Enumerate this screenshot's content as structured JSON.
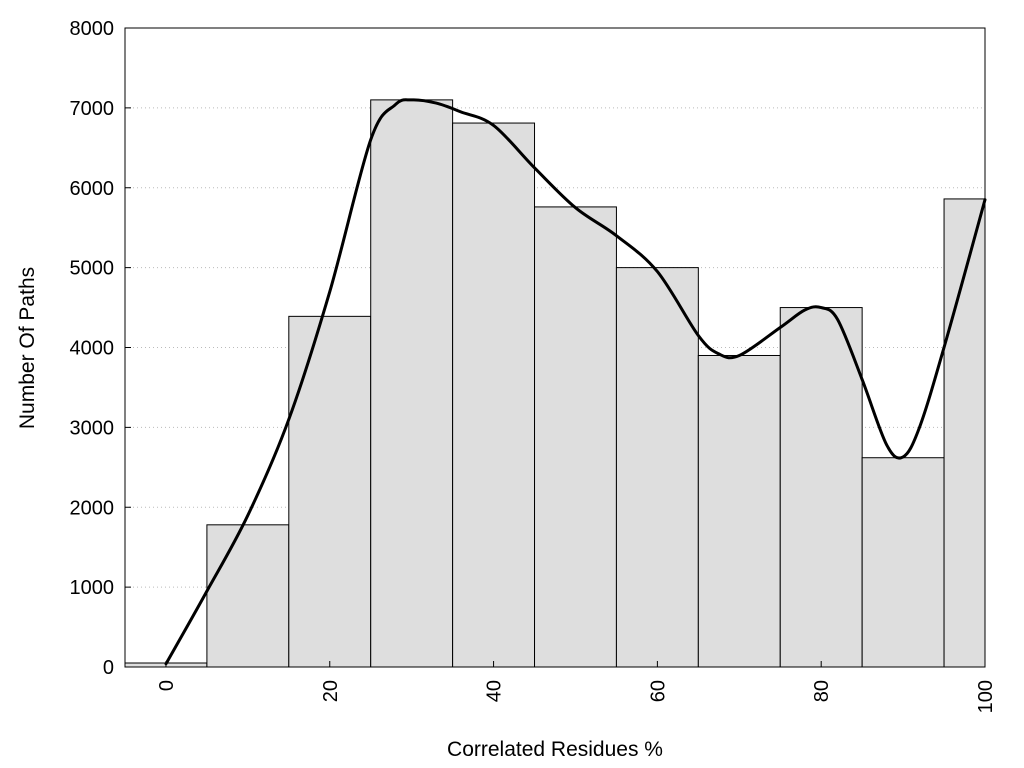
{
  "chart_data": {
    "type": "bar",
    "xlabel": "Correlated Residues %",
    "ylabel": "Number Of Paths",
    "xlim": [
      -5,
      100
    ],
    "ylim": [
      0,
      8000
    ],
    "x_ticks": [
      "0",
      "20",
      "40",
      "60",
      "80",
      "100"
    ],
    "y_ticks": [
      "0",
      "1000",
      "2000",
      "3000",
      "4000",
      "5000",
      "6000",
      "7000",
      "8000"
    ],
    "grid": "horizontal dotted",
    "series": [
      {
        "type": "bar",
        "bin_width": 10,
        "bin_centers": [
          0,
          10,
          20,
          30,
          40,
          50,
          60,
          70,
          80,
          90,
          100
        ],
        "values": [
          50,
          1780,
          4390,
          7100,
          6810,
          5760,
          5000,
          3900,
          4500,
          2620,
          5860
        ],
        "color": "#dedede"
      },
      {
        "type": "line",
        "x": [
          0,
          5,
          10,
          15,
          20,
          25,
          28,
          30,
          33,
          36,
          40,
          45,
          50,
          55,
          60,
          65,
          67.5,
          70,
          75,
          78,
          80,
          82,
          85,
          88,
          90,
          92,
          95,
          100
        ],
        "y": [
          40,
          950,
          1900,
          3100,
          4700,
          6600,
          7040,
          7100,
          7060,
          6950,
          6780,
          6250,
          5750,
          5400,
          4950,
          4150,
          3920,
          3900,
          4250,
          4470,
          4500,
          4350,
          3600,
          2780,
          2630,
          3000,
          4000,
          5850
        ],
        "color": "#000000"
      }
    ]
  }
}
